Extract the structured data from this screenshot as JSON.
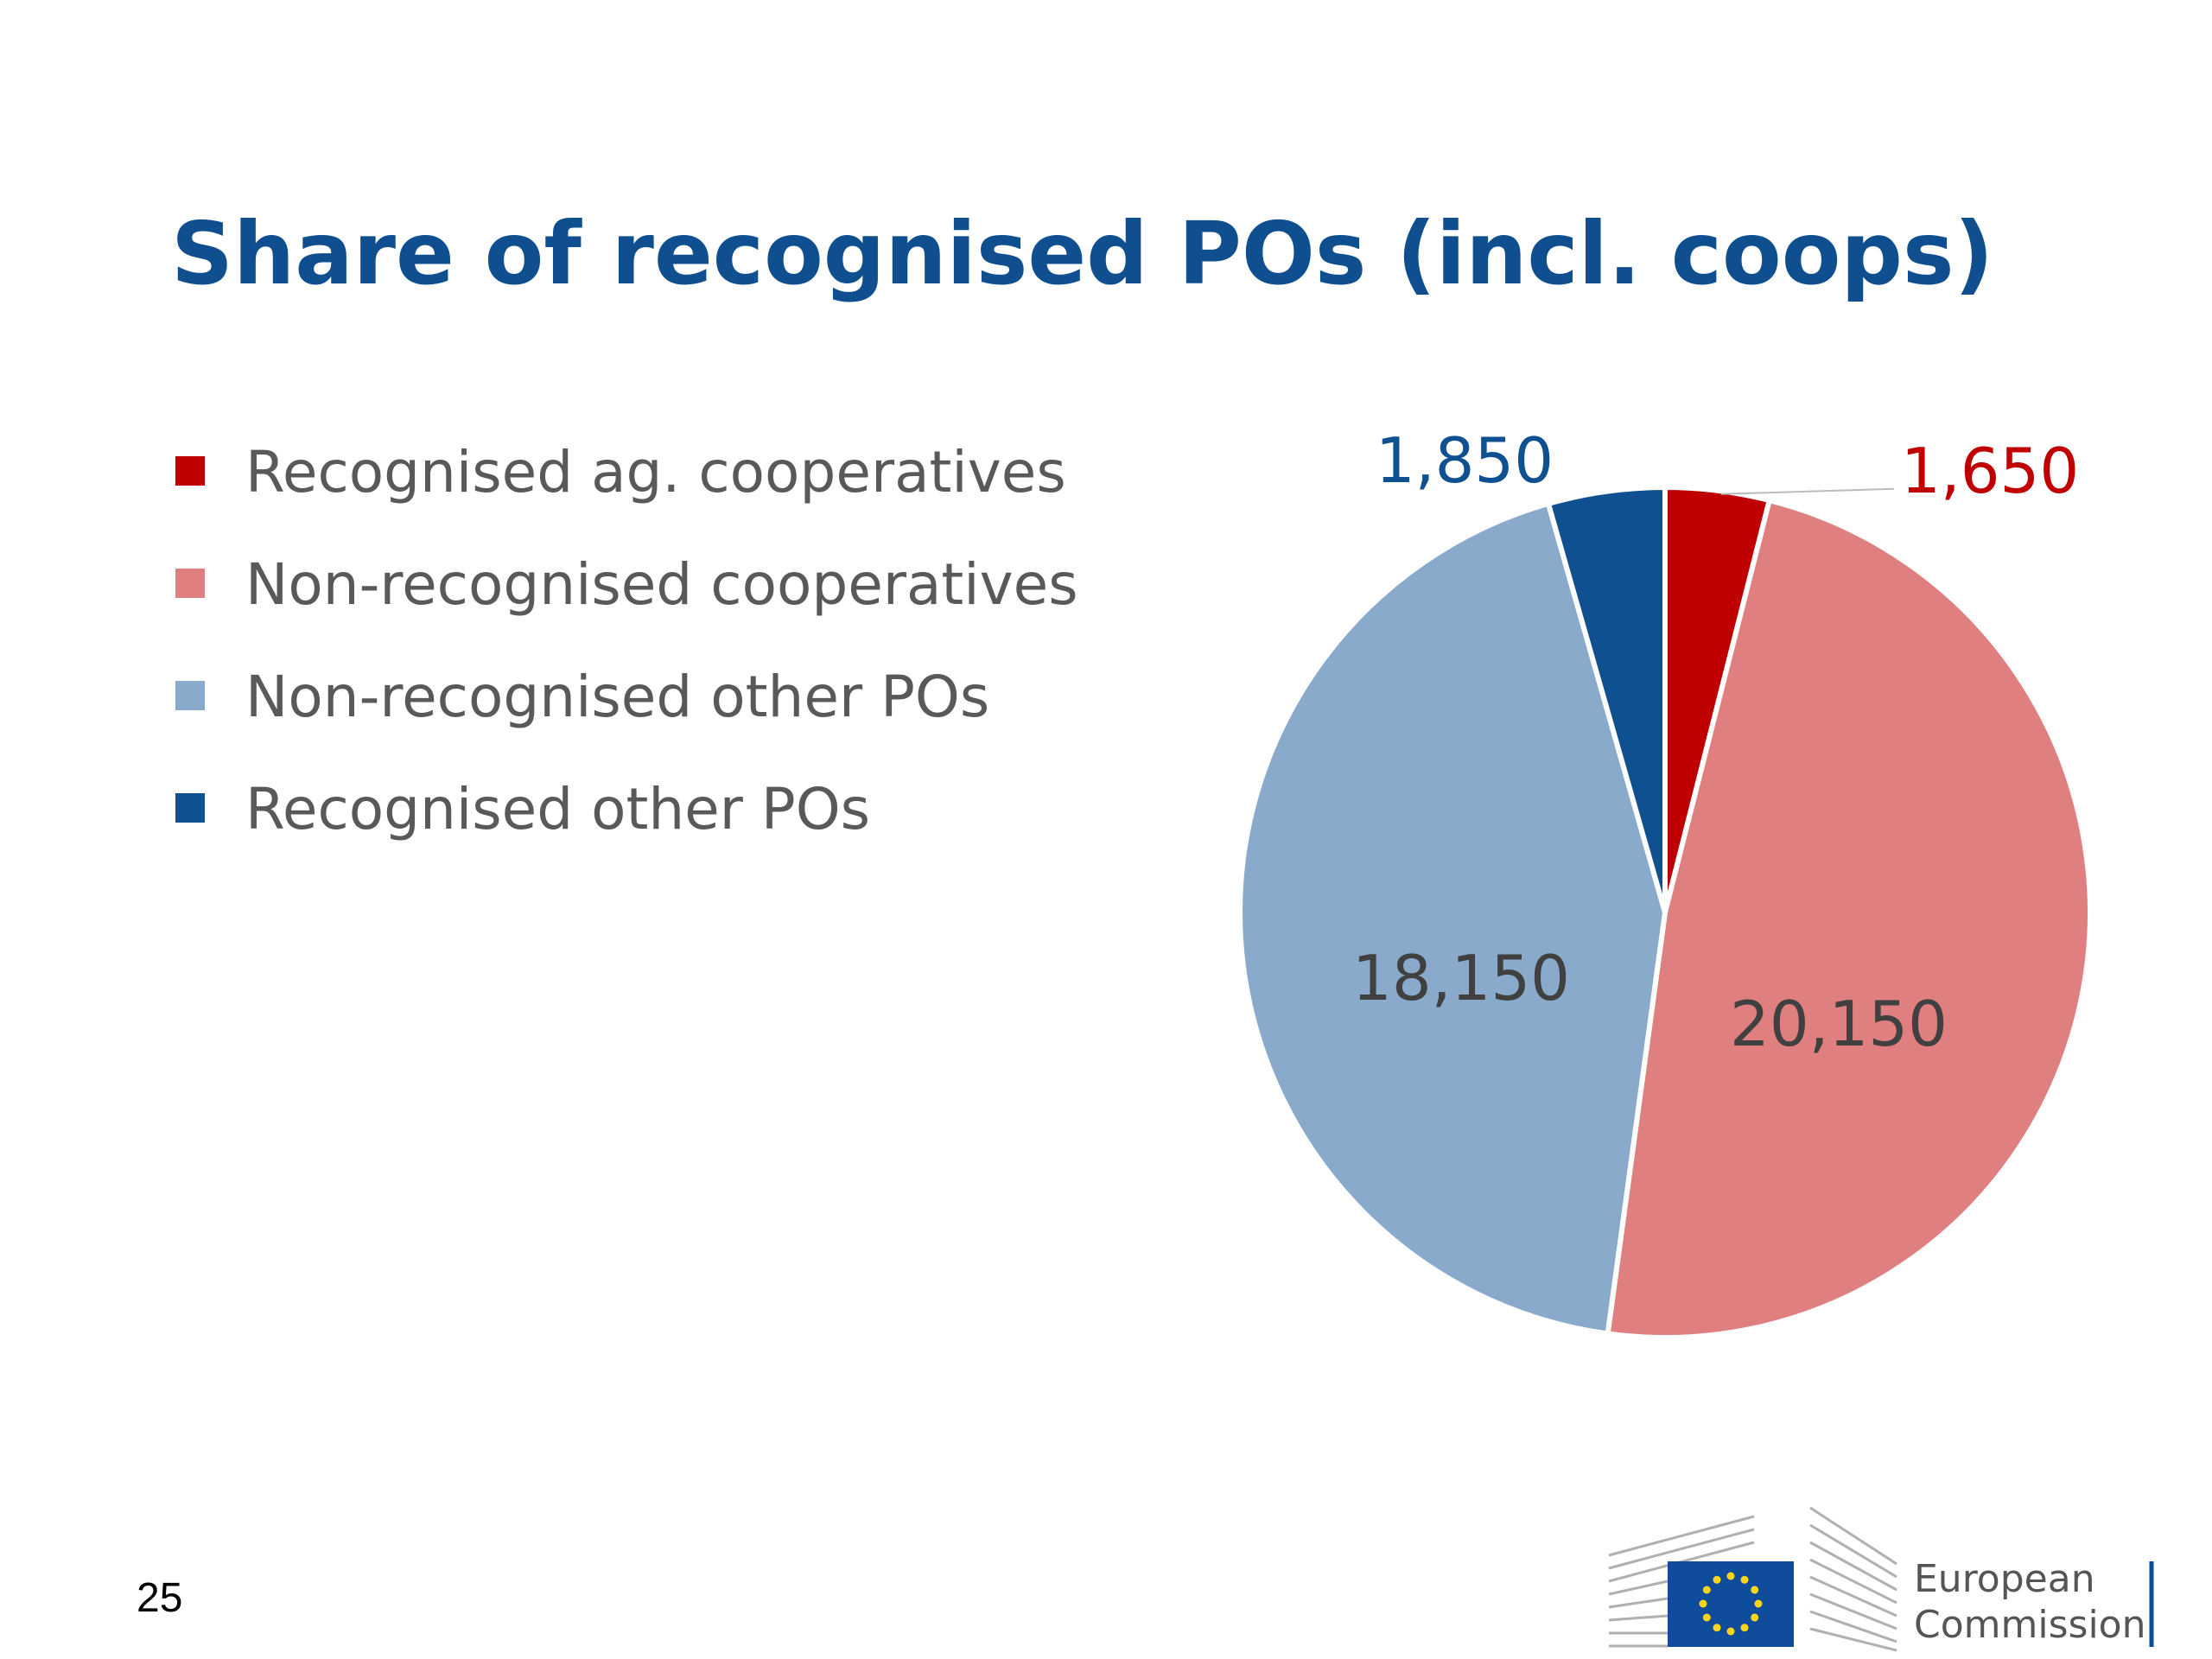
{
  "chart_data": {
    "type": "pie",
    "title": "Share of recognised POs (incl. coops)",
    "categories": [
      "Recognised ag. cooperatives",
      "Non-recognised cooperatives",
      "Non-recognised other POs",
      "Recognised other POs"
    ],
    "values": [
      1650,
      20150,
      18150,
      1850
    ],
    "value_labels": [
      "1,650",
      "20,150",
      "18,150",
      "1,850"
    ],
    "colors": [
      "#c00000",
      "#e07f7f",
      "#8aaacb",
      "#0f5190"
    ],
    "label_colors": [
      "#c00000",
      "#404040",
      "#404040",
      "#0f5190"
    ],
    "legend": "left"
  },
  "footer": {
    "page_number": "25",
    "logo": [
      "European",
      "Commission"
    ]
  }
}
